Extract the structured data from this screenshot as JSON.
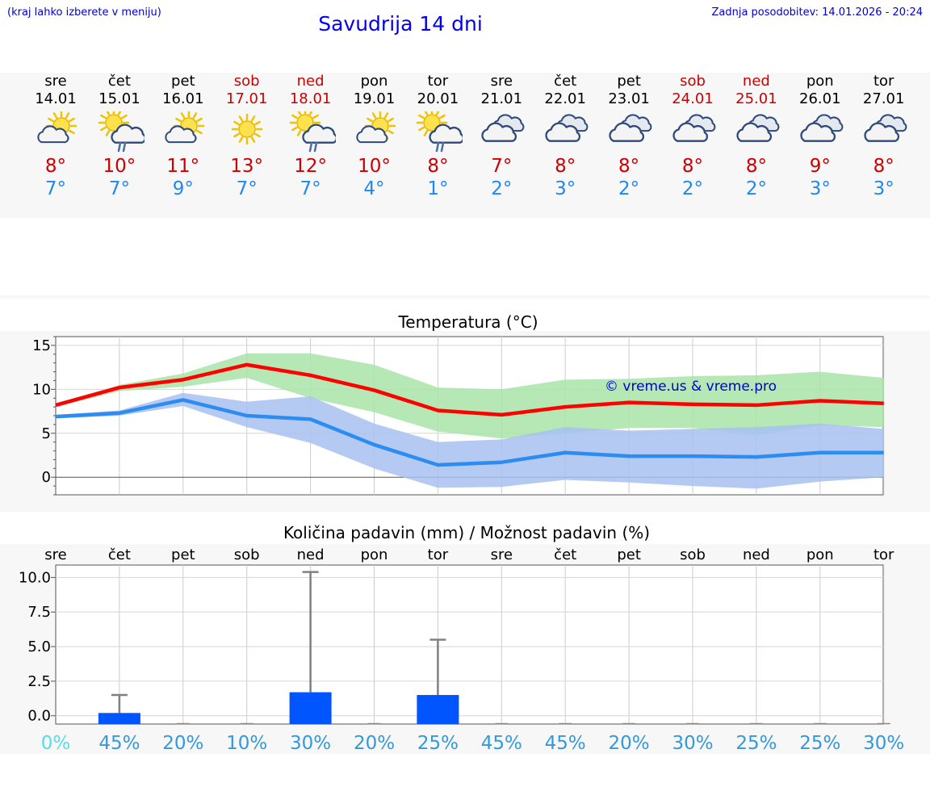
{
  "header": {
    "hint": "(kraj lahko izberete v meniju)",
    "title": "Savudrija 14 dni",
    "updated": "Zadnja posodobitev: 14.01.2026 - 20:24"
  },
  "colors": {
    "max": "#ff0000",
    "min": "#2d8cf0",
    "max_band": "#a8e4a8",
    "min_band": "#a7c1f1",
    "bar": "#0055ff",
    "prob": "#3399dd",
    "prob_zero": "#55ddee",
    "watermark": "#0000cc"
  },
  "days": [
    {
      "name": "sre",
      "date": "14.01",
      "weekend": false,
      "icon": "partly-sunny-icon",
      "max": "8°",
      "min": "7°"
    },
    {
      "name": "čet",
      "date": "15.01",
      "weekend": false,
      "icon": "sun-cloud-rain-icon",
      "max": "10°",
      "min": "7°"
    },
    {
      "name": "pet",
      "date": "16.01",
      "weekend": false,
      "icon": "partly-sunny-icon",
      "max": "11°",
      "min": "9°"
    },
    {
      "name": "sob",
      "date": "17.01",
      "weekend": true,
      "icon": "sun-icon",
      "max": "13°",
      "min": "7°"
    },
    {
      "name": "ned",
      "date": "18.01",
      "weekend": true,
      "icon": "sun-cloud-rain-icon",
      "max": "12°",
      "min": "7°"
    },
    {
      "name": "pon",
      "date": "19.01",
      "weekend": false,
      "icon": "partly-sunny-icon",
      "max": "10°",
      "min": "4°"
    },
    {
      "name": "tor",
      "date": "20.01",
      "weekend": false,
      "icon": "sun-cloud-rain-icon",
      "max": "8°",
      "min": "1°"
    },
    {
      "name": "sre",
      "date": "21.01",
      "weekend": false,
      "icon": "cloudy-icon",
      "max": "7°",
      "min": "2°"
    },
    {
      "name": "čet",
      "date": "22.01",
      "weekend": false,
      "icon": "cloudy-icon",
      "max": "8°",
      "min": "3°"
    },
    {
      "name": "pet",
      "date": "23.01",
      "weekend": false,
      "icon": "cloudy-icon",
      "max": "8°",
      "min": "2°"
    },
    {
      "name": "sob",
      "date": "24.01",
      "weekend": true,
      "icon": "cloudy-icon",
      "max": "8°",
      "min": "2°"
    },
    {
      "name": "ned",
      "date": "25.01",
      "weekend": true,
      "icon": "cloudy-icon",
      "max": "8°",
      "min": "2°"
    },
    {
      "name": "pon",
      "date": "26.01",
      "weekend": false,
      "icon": "cloudy-icon",
      "max": "9°",
      "min": "3°"
    },
    {
      "name": "tor",
      "date": "27.01",
      "weekend": false,
      "icon": "cloudy-icon",
      "max": "8°",
      "min": "3°"
    }
  ],
  "chart_data": [
    {
      "type": "line",
      "title": "Temperatura (°C)",
      "watermark": "© vreme.us & vreme.pro",
      "x": [
        0,
        1,
        2,
        3,
        4,
        5,
        6,
        7,
        8,
        9,
        10,
        11,
        12,
        13
      ],
      "ylim": [
        -2,
        16
      ],
      "yticks": [
        0,
        5,
        10,
        15
      ],
      "series": [
        {
          "name": "max",
          "values": [
            8.2,
            10.2,
            11.1,
            12.8,
            11.6,
            9.9,
            7.6,
            7.1,
            8.0,
            8.5,
            8.3,
            8.2,
            8.7,
            8.4
          ]
        },
        {
          "name": "min",
          "values": [
            6.9,
            7.3,
            8.8,
            7.0,
            6.6,
            3.7,
            1.4,
            1.7,
            2.8,
            2.4,
            2.4,
            2.3,
            2.8,
            2.8
          ]
        }
      ],
      "bands": [
        {
          "name": "max_range",
          "upper": [
            8.4,
            10.5,
            11.8,
            14.1,
            14.1,
            12.8,
            10.2,
            10.0,
            11.1,
            11.2,
            11.5,
            11.6,
            12.0,
            11.3
          ],
          "lower": [
            8.0,
            9.8,
            10.3,
            11.3,
            9.0,
            7.4,
            5.2,
            4.4,
            5.0,
            5.6,
            5.6,
            4.8,
            5.9,
            5.7
          ]
        },
        {
          "name": "min_range",
          "upper": [
            7.1,
            7.6,
            9.6,
            8.6,
            9.2,
            6.1,
            4.0,
            4.3,
            5.7,
            5.3,
            5.5,
            5.7,
            6.1,
            5.5
          ],
          "lower": [
            6.7,
            7.0,
            8.1,
            5.7,
            3.9,
            1.0,
            -1.2,
            -1.1,
            -0.3,
            -0.6,
            -1.0,
            -1.3,
            -0.5,
            0.0
          ]
        }
      ]
    },
    {
      "type": "bar",
      "title": "Količina padavin (mm) / Možnost padavin (%)",
      "categories": [
        "sre",
        "čet",
        "pet",
        "sob",
        "ned",
        "pon",
        "tor",
        "sre",
        "čet",
        "pet",
        "sob",
        "ned",
        "pon",
        "tor"
      ],
      "ylim": [
        -0.6,
        10.9
      ],
      "yticks": [
        "0.0",
        "2.5",
        "5.0",
        "7.5",
        "10.0"
      ],
      "values": [
        0,
        0.2,
        0,
        0,
        1.7,
        0,
        1.5,
        0,
        0,
        0,
        0,
        0,
        0,
        0
      ],
      "error_high": [
        null,
        1.5,
        null,
        null,
        10.4,
        null,
        5.5,
        null,
        null,
        null,
        null,
        null,
        null,
        null
      ],
      "probability": [
        "0%",
        "45%",
        "20%",
        "10%",
        "30%",
        "20%",
        "25%",
        "45%",
        "45%",
        "20%",
        "30%",
        "25%",
        "25%",
        "30%"
      ]
    }
  ]
}
